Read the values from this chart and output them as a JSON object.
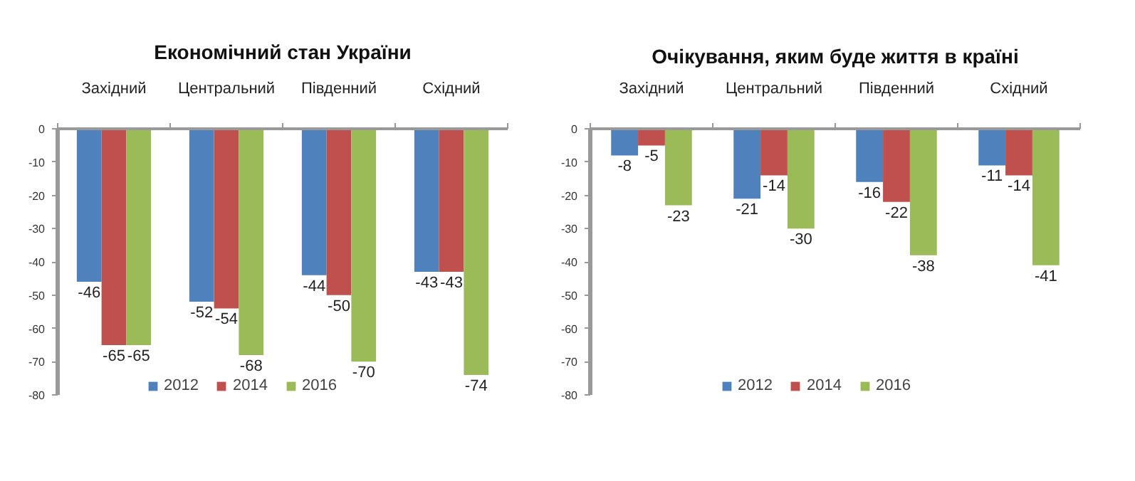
{
  "chart_data": [
    {
      "type": "bar",
      "title": "Економічний стан України",
      "categories": [
        "Західний",
        "Центральний",
        "Південний",
        "Східний"
      ],
      "series": [
        {
          "name": "2012",
          "color": "#4f81bd",
          "values": [
            -46,
            -52,
            -44,
            -43
          ]
        },
        {
          "name": "2014",
          "color": "#c0504d",
          "values": [
            -65,
            -54,
            -50,
            -43
          ]
        },
        {
          "name": "2016",
          "color": "#9bbb59",
          "values": [
            -65,
            -68,
            -70,
            -74
          ]
        }
      ],
      "ylim": [
        -80,
        0
      ],
      "yticks": [
        0,
        -10,
        -20,
        -30,
        -40,
        -50,
        -60,
        -70,
        -80
      ],
      "data_labels": true,
      "legend": "bottom"
    },
    {
      "type": "bar",
      "title": "Очікування, яким буде життя в країні",
      "categories": [
        "Західний",
        "Центральний",
        "Південний",
        "Східний"
      ],
      "series": [
        {
          "name": "2012",
          "color": "#4f81bd",
          "values": [
            -8,
            -21,
            -16,
            -11
          ]
        },
        {
          "name": "2014",
          "color": "#c0504d",
          "values": [
            -5,
            -14,
            -22,
            -14
          ]
        },
        {
          "name": "2016",
          "color": "#9bbb59",
          "values": [
            -23,
            -30,
            -38,
            -41
          ]
        }
      ],
      "ylim": [
        -80,
        0
      ],
      "yticks": [
        0,
        -10,
        -20,
        -30,
        -40,
        -50,
        -60,
        -70,
        -80
      ],
      "data_labels": true,
      "legend": "bottom"
    }
  ]
}
